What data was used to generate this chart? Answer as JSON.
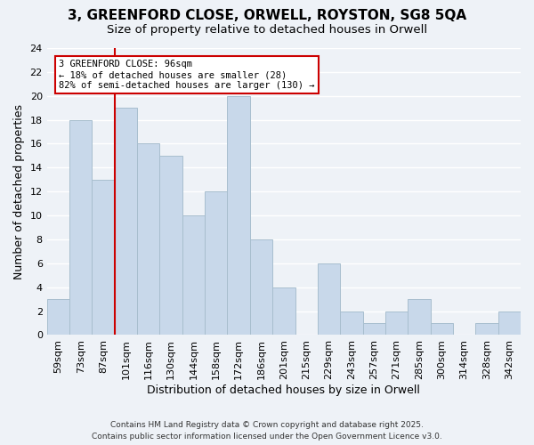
{
  "title": "3, GREENFORD CLOSE, ORWELL, ROYSTON, SG8 5QA",
  "subtitle": "Size of property relative to detached houses in Orwell",
  "xlabel": "Distribution of detached houses by size in Orwell",
  "ylabel": "Number of detached properties",
  "bar_labels": [
    "59sqm",
    "73sqm",
    "87sqm",
    "101sqm",
    "116sqm",
    "130sqm",
    "144sqm",
    "158sqm",
    "172sqm",
    "186sqm",
    "201sqm",
    "215sqm",
    "229sqm",
    "243sqm",
    "257sqm",
    "271sqm",
    "285sqm",
    "300sqm",
    "314sqm",
    "328sqm",
    "342sqm"
  ],
  "bar_values": [
    3,
    18,
    13,
    19,
    16,
    15,
    10,
    12,
    20,
    8,
    4,
    0,
    6,
    2,
    1,
    2,
    3,
    1,
    0,
    1,
    2
  ],
  "bar_color": "#c8d8ea",
  "bar_edge_color": "#a8bece",
  "vline_x_index": 3,
  "vline_color": "#cc0000",
  "ylim": [
    0,
    24
  ],
  "yticks": [
    0,
    2,
    4,
    6,
    8,
    10,
    12,
    14,
    16,
    18,
    20,
    22,
    24
  ],
  "annotation_title": "3 GREENFORD CLOSE: 96sqm",
  "annotation_line1": "← 18% of detached houses are smaller (28)",
  "annotation_line2": "82% of semi-detached houses are larger (130) →",
  "annotation_box_color": "#ffffff",
  "annotation_box_edge": "#cc0000",
  "footer_line1": "Contains HM Land Registry data © Crown copyright and database right 2025.",
  "footer_line2": "Contains public sector information licensed under the Open Government Licence v3.0.",
  "bg_color": "#eef2f7",
  "grid_color": "#ffffff",
  "title_fontsize": 11,
  "subtitle_fontsize": 9.5,
  "tick_fontsize": 8,
  "axis_label_fontsize": 9
}
